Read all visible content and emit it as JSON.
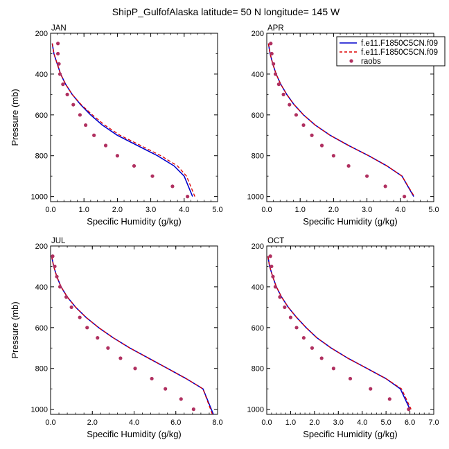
{
  "title": "ShipP_GulfofAlaska  latitude= 50 N longitude= 145 W",
  "legend": {
    "placement": "top-right",
    "entries": [
      {
        "label": "f.e11.F1850C5CN.f09",
        "color": "#0000cc",
        "style": "solid"
      },
      {
        "label": "f.e11.F1850C5CN.f09",
        "color": "#dd0000",
        "style": "dashed"
      },
      {
        "label": "raobs",
        "color": "#b03060",
        "style": "dot"
      }
    ]
  },
  "chart_data": [
    {
      "type": "line",
      "panel_label": "JAN",
      "xlabel": "Specific Humidity (g/kg)",
      "ylabel": "Pressure (mb)",
      "xlim": [
        0,
        5
      ],
      "ylim": [
        200,
        1025
      ],
      "y_inverted": true,
      "xticks": [
        "0.0",
        "1.0",
        "2.0",
        "3.0",
        "4.0",
        "5.0"
      ],
      "yticks": [
        "200",
        "400",
        "600",
        "800",
        "1000"
      ],
      "series": [
        {
          "name": "f.e11.F1850C5CN.f09",
          "color": "#0000cc",
          "dash": false,
          "x": [
            0.05,
            0.1,
            0.2,
            0.3,
            0.45,
            0.65,
            0.9,
            1.2,
            1.55,
            2.0,
            2.6,
            3.2,
            3.7,
            4.0,
            4.25
          ],
          "y": [
            250,
            300,
            350,
            400,
            450,
            500,
            550,
            600,
            650,
            700,
            750,
            800,
            850,
            900,
            1000
          ]
        },
        {
          "name": "f.e11.F1850C5CN.f09",
          "color": "#dd0000",
          "dash": true,
          "x": [
            0.05,
            0.1,
            0.2,
            0.3,
            0.45,
            0.65,
            0.92,
            1.25,
            1.62,
            2.08,
            2.7,
            3.3,
            3.8,
            4.07,
            4.32
          ],
          "y": [
            250,
            300,
            350,
            400,
            450,
            500,
            550,
            600,
            650,
            700,
            750,
            800,
            850,
            900,
            1000
          ]
        },
        {
          "name": "raobs",
          "color": "#b03060",
          "dots": true,
          "x": [
            0.22,
            0.22,
            0.25,
            0.28,
            0.37,
            0.5,
            0.68,
            0.88,
            1.05,
            1.3,
            1.65,
            2.0,
            2.5,
            3.05,
            3.65,
            4.1
          ],
          "y": [
            250,
            300,
            350,
            400,
            450,
            500,
            550,
            600,
            650,
            700,
            750,
            800,
            850,
            900,
            950,
            1000
          ]
        }
      ]
    },
    {
      "type": "line",
      "panel_label": "APR",
      "xlabel": "Specific Humidity (g/kg)",
      "ylabel": "",
      "xlim": [
        0,
        5
      ],
      "ylim": [
        200,
        1025
      ],
      "y_inverted": true,
      "xticks": [
        "0.0",
        "1.0",
        "2.0",
        "3.0",
        "4.0",
        "5.0"
      ],
      "yticks": [
        "200",
        "400",
        "600",
        "800",
        "1000"
      ],
      "series": [
        {
          "name": "f.e11.F1850C5CN.f09",
          "color": "#0000cc",
          "dash": false,
          "x": [
            0.05,
            0.1,
            0.18,
            0.28,
            0.42,
            0.6,
            0.82,
            1.1,
            1.45,
            1.9,
            2.45,
            3.05,
            3.6,
            4.05,
            4.4
          ],
          "y": [
            250,
            300,
            350,
            400,
            450,
            500,
            550,
            600,
            650,
            700,
            750,
            800,
            850,
            900,
            1000
          ]
        },
        {
          "name": "f.e11.F1850C5CN.f09",
          "color": "#dd0000",
          "dash": true,
          "x": [
            0.05,
            0.1,
            0.18,
            0.28,
            0.42,
            0.6,
            0.82,
            1.1,
            1.45,
            1.9,
            2.45,
            3.05,
            3.6,
            4.05,
            4.42
          ],
          "y": [
            250,
            300,
            350,
            400,
            450,
            500,
            550,
            600,
            650,
            700,
            750,
            800,
            850,
            900,
            1000
          ]
        },
        {
          "name": "raobs",
          "color": "#b03060",
          "dots": true,
          "x": [
            0.12,
            0.15,
            0.2,
            0.26,
            0.36,
            0.5,
            0.68,
            0.88,
            1.1,
            1.35,
            1.65,
            2.0,
            2.45,
            3.0,
            3.55,
            4.12
          ],
          "y": [
            250,
            300,
            350,
            400,
            450,
            500,
            550,
            600,
            650,
            700,
            750,
            800,
            850,
            900,
            950,
            1000
          ]
        }
      ]
    },
    {
      "type": "line",
      "panel_label": "JUL",
      "xlabel": "Specific Humidity (g/kg)",
      "ylabel": "Pressure (mb)",
      "xlim": [
        0,
        8
      ],
      "ylim": [
        200,
        1025
      ],
      "y_inverted": true,
      "xticks": [
        "0.0",
        "2.0",
        "4.0",
        "6.0",
        "8.0"
      ],
      "yticks": [
        "200",
        "400",
        "600",
        "800",
        "1000"
      ],
      "series": [
        {
          "name": "f.e11.F1850C5CN.f09",
          "color": "#0000cc",
          "dash": false,
          "x": [
            0.05,
            0.15,
            0.3,
            0.5,
            0.8,
            1.2,
            1.7,
            2.3,
            3.0,
            3.8,
            4.7,
            5.6,
            6.5,
            7.3,
            7.8
          ],
          "y": [
            250,
            300,
            350,
            400,
            450,
            500,
            550,
            600,
            650,
            700,
            750,
            800,
            850,
            900,
            1025
          ]
        },
        {
          "name": "f.e11.F1850C5CN.f09",
          "color": "#dd0000",
          "dash": true,
          "x": [
            0.05,
            0.15,
            0.3,
            0.5,
            0.8,
            1.2,
            1.7,
            2.3,
            3.0,
            3.8,
            4.7,
            5.6,
            6.5,
            7.3,
            7.75
          ],
          "y": [
            250,
            300,
            350,
            400,
            450,
            500,
            550,
            600,
            650,
            700,
            750,
            800,
            850,
            900,
            1025
          ]
        },
        {
          "name": "raobs",
          "color": "#b03060",
          "dots": true,
          "x": [
            0.1,
            0.2,
            0.3,
            0.45,
            0.75,
            1.0,
            1.4,
            1.75,
            2.25,
            2.75,
            3.35,
            4.05,
            4.85,
            5.5,
            6.25,
            6.85
          ],
          "y": [
            250,
            300,
            350,
            400,
            450,
            500,
            550,
            600,
            650,
            700,
            750,
            800,
            850,
            900,
            950,
            1000
          ]
        }
      ]
    },
    {
      "type": "line",
      "panel_label": "OCT",
      "xlabel": "Specific Humidity (g/kg)",
      "ylabel": "",
      "xlim": [
        0,
        7
      ],
      "ylim": [
        200,
        1025
      ],
      "y_inverted": true,
      "xticks": [
        "0.0",
        "1.0",
        "2.0",
        "3.0",
        "4.0",
        "5.0",
        "6.0",
        "7.0"
      ],
      "yticks": [
        "200",
        "400",
        "600",
        "800",
        "1000"
      ],
      "series": [
        {
          "name": "f.e11.F1850C5CN.f09",
          "color": "#0000cc",
          "dash": false,
          "x": [
            0.05,
            0.12,
            0.25,
            0.4,
            0.62,
            0.9,
            1.25,
            1.65,
            2.1,
            2.7,
            3.4,
            4.2,
            5.0,
            5.6,
            6.0
          ],
          "y": [
            250,
            300,
            350,
            400,
            450,
            500,
            550,
            600,
            650,
            700,
            750,
            800,
            850,
            900,
            1000
          ]
        },
        {
          "name": "f.e11.F1850C5CN.f09",
          "color": "#dd0000",
          "dash": true,
          "x": [
            0.05,
            0.12,
            0.25,
            0.4,
            0.62,
            0.9,
            1.25,
            1.65,
            2.1,
            2.7,
            3.4,
            4.2,
            5.0,
            5.65,
            6.05
          ],
          "y": [
            250,
            300,
            350,
            400,
            450,
            500,
            550,
            600,
            650,
            700,
            750,
            800,
            850,
            900,
            1000
          ]
        },
        {
          "name": "raobs",
          "color": "#b03060",
          "dots": true,
          "x": [
            0.15,
            0.2,
            0.26,
            0.36,
            0.55,
            0.75,
            1.0,
            1.25,
            1.55,
            1.9,
            2.3,
            2.8,
            3.5,
            4.35,
            5.15,
            5.95
          ],
          "y": [
            250,
            300,
            350,
            400,
            450,
            500,
            550,
            600,
            650,
            700,
            750,
            800,
            850,
            900,
            950,
            1000
          ]
        }
      ]
    }
  ]
}
